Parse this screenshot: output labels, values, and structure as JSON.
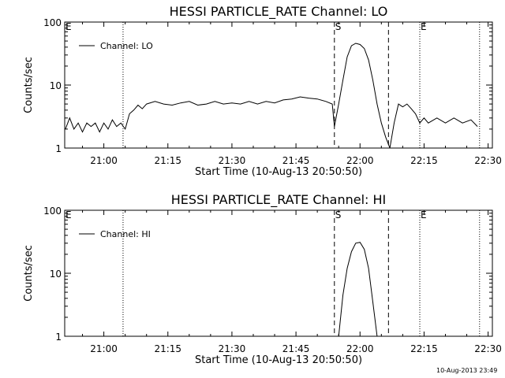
{
  "chart_data": [
    {
      "type": "line",
      "title": "HESSI PARTICLE_RATE Channel: LO",
      "xlabel": "Start Time (10-Aug-13 20:50:50)",
      "ylabel": "Counts/sec",
      "y_scale": "log",
      "ylim": [
        1,
        100
      ],
      "xlim": [
        "20:50:50",
        "22:31:00"
      ],
      "x_tick_labels": [
        "21:00",
        "21:15",
        "21:30",
        "21:45",
        "22:00",
        "22:15",
        "22:30"
      ],
      "y_tick_labels": [
        "1",
        "10",
        "100"
      ],
      "grid": false,
      "legend": {
        "position": "top-left",
        "entries": [
          "Channel: LO"
        ]
      },
      "markers": [
        {
          "label": "E",
          "time": "20:50:50",
          "style": "dotted"
        },
        {
          "label": "",
          "time": "21:04:30",
          "style": "dotted"
        },
        {
          "label": "S",
          "time": "21:54:00",
          "style": "dashed"
        },
        {
          "label": "",
          "time": "22:06:40",
          "style": "dashed"
        },
        {
          "label": "E",
          "time": "22:14:00",
          "style": "dotted"
        },
        {
          "label": "",
          "time": "22:28:00",
          "style": "dotted"
        }
      ],
      "series": [
        {
          "name": "Channel: LO",
          "x": [
            "20:51:00",
            "20:52:00",
            "20:53:00",
            "20:54:00",
            "20:55:00",
            "20:56:00",
            "20:57:00",
            "20:58:00",
            "20:59:00",
            "21:00:00",
            "21:01:00",
            "21:02:00",
            "21:03:00",
            "21:04:00",
            "21:05:00",
            "21:06:00",
            "21:07:00",
            "21:08:00",
            "21:09:00",
            "21:10:00",
            "21:12:00",
            "21:14:00",
            "21:16:00",
            "21:18:00",
            "21:20:00",
            "21:22:00",
            "21:24:00",
            "21:26:00",
            "21:28:00",
            "21:30:00",
            "21:32:00",
            "21:34:00",
            "21:36:00",
            "21:38:00",
            "21:40:00",
            "21:42:00",
            "21:44:00",
            "21:46:00",
            "21:48:00",
            "21:50:00",
            "21:52:00",
            "21:53:30",
            "21:54:00",
            "21:55:00",
            "21:56:00",
            "21:57:00",
            "21:58:00",
            "21:59:00",
            "22:00:00",
            "22:01:00",
            "22:02:00",
            "22:03:00",
            "22:04:00",
            "22:05:00",
            "22:06:00",
            "22:07:00",
            "22:08:00",
            "22:09:00",
            "22:10:00",
            "22:11:00",
            "22:12:00",
            "22:13:00",
            "22:14:00",
            "22:15:00",
            "22:16:00",
            "22:18:00",
            "22:20:00",
            "22:22:00",
            "22:24:00",
            "22:26:00",
            "22:27:30"
          ],
          "values": [
            2.0,
            3.0,
            2.0,
            2.5,
            1.8,
            2.5,
            2.2,
            2.5,
            1.8,
            2.5,
            2.0,
            2.8,
            2.2,
            2.5,
            2.0,
            3.5,
            4.0,
            4.8,
            4.2,
            5.0,
            5.5,
            5.0,
            4.8,
            5.2,
            5.5,
            4.8,
            5.0,
            5.5,
            5.0,
            5.2,
            5.0,
            5.5,
            5.0,
            5.5,
            5.2,
            5.8,
            6.0,
            6.5,
            6.2,
            6.0,
            5.5,
            5.0,
            2.2,
            5.0,
            12.0,
            28.0,
            42.0,
            46.0,
            44.0,
            38.0,
            25.0,
            12.0,
            5.0,
            2.5,
            1.5,
            1.0,
            2.5,
            5.0,
            4.5,
            5.0,
            4.2,
            3.5,
            2.5,
            3.0,
            2.5,
            3.0,
            2.5,
            3.0,
            2.5,
            2.8,
            2.2
          ]
        }
      ]
    },
    {
      "type": "line",
      "title": "HESSI PARTICLE_RATE Channel: HI",
      "xlabel": "Start Time (10-Aug-13 20:50:50)",
      "ylabel": "Counts/sec",
      "y_scale": "log",
      "ylim": [
        1,
        100
      ],
      "xlim": [
        "20:50:50",
        "22:31:00"
      ],
      "x_tick_labels": [
        "21:00",
        "21:15",
        "21:30",
        "21:45",
        "22:00",
        "22:15",
        "22:30"
      ],
      "y_tick_labels": [
        "1",
        "10",
        "100"
      ],
      "grid": false,
      "legend": {
        "position": "top-left",
        "entries": [
          "Channel: HI"
        ]
      },
      "markers": [
        {
          "label": "E",
          "time": "20:50:50",
          "style": "dotted"
        },
        {
          "label": "",
          "time": "21:04:30",
          "style": "dotted"
        },
        {
          "label": "S",
          "time": "21:54:00",
          "style": "dashed"
        },
        {
          "label": "",
          "time": "22:06:40",
          "style": "dashed"
        },
        {
          "label": "E",
          "time": "22:14:00",
          "style": "dotted"
        },
        {
          "label": "",
          "time": "22:28:00",
          "style": "dotted"
        }
      ],
      "series": [
        {
          "name": "Channel: HI",
          "x": [
            "21:55:00",
            "21:56:00",
            "21:57:00",
            "21:58:00",
            "21:59:00",
            "22:00:00",
            "22:01:00",
            "22:02:00",
            "22:03:00",
            "22:04:00"
          ],
          "values": [
            1.0,
            4.5,
            12.0,
            22.0,
            30.0,
            31.0,
            24.0,
            12.0,
            3.5,
            1.0
          ]
        }
      ]
    }
  ],
  "footer": {
    "timestamp": "10-Aug-2013 23:49"
  }
}
